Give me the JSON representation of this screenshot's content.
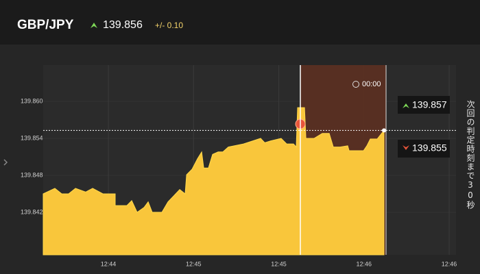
{
  "header": {
    "symbol": "GBP/JPY",
    "price": "139.856",
    "change": "+/- 0.10"
  },
  "panel": {
    "timer": "00:00",
    "high_price": "139.857",
    "low_price": "139.855",
    "notice": "次回の判定時刻まで30秒"
  },
  "chart_data": {
    "type": "area",
    "color": "#f9c63b",
    "x": [
      -0.765,
      -0.628,
      -0.547,
      -0.467,
      -0.386,
      -0.266,
      -0.185,
      -0.064,
      0.08,
      0.08,
      0.217,
      0.274,
      0.338,
      0.419,
      0.467,
      0.515,
      0.628,
      0.7,
      0.837,
      0.901,
      0.918,
      0.982,
      1.046,
      1.095,
      1.119,
      1.175,
      1.223,
      1.288,
      1.344,
      1.408,
      1.586,
      1.787,
      1.835,
      1.907,
      2.028,
      2.093,
      2.173,
      2.205,
      2.221,
      2.302,
      2.318,
      2.414,
      2.511,
      2.592,
      2.64,
      2.72,
      2.809,
      2.825,
      2.994,
      3.034,
      3.074,
      3.155,
      3.235
    ],
    "values": [
      139.845,
      139.8459,
      139.845,
      139.845,
      139.8459,
      139.8453,
      139.8459,
      139.845,
      139.845,
      139.8431,
      139.8431,
      139.8439,
      139.842,
      139.8428,
      139.8437,
      139.842,
      139.842,
      139.8437,
      139.8457,
      139.845,
      139.8481,
      139.849,
      139.8507,
      139.8518,
      139.8492,
      139.8492,
      139.8514,
      139.8518,
      139.8518,
      139.8526,
      139.8531,
      139.854,
      139.8533,
      139.8536,
      139.854,
      139.8531,
      139.8531,
      139.8526,
      139.859,
      139.859,
      139.854,
      139.854,
      139.8548,
      139.8548,
      139.8526,
      139.8526,
      139.8528,
      139.852,
      139.852,
      139.8528,
      139.8539,
      139.8539,
      139.8553
    ],
    "xlim": [
      -0.765,
      4.08
    ],
    "ylim": [
      139.8351,
      139.8659
    ],
    "xticks": [
      {
        "value": 0,
        "label": "12:44"
      },
      {
        "value": 1,
        "label": "12:45"
      },
      {
        "value": 2,
        "label": "12:45"
      },
      {
        "value": 3,
        "label": "12:46"
      },
      {
        "value": 4,
        "label": "12:46"
      }
    ],
    "yticks": [
      {
        "value": 139.86,
        "label": "139.860"
      },
      139.854,
      139.848,
      139.842
    ],
    "grid": true
  }
}
